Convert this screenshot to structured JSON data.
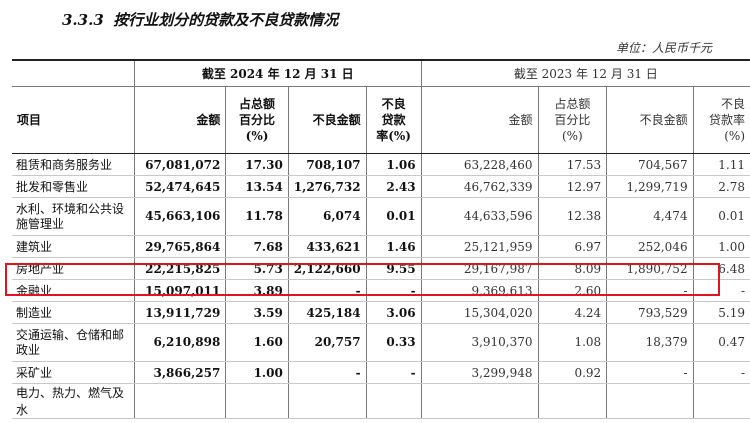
{
  "section": {
    "number": "3.3.3",
    "title": "按行业划分的贷款及不良贷款情况"
  },
  "unit": "单位：人民币千元",
  "header": {
    "item": "项目",
    "period_2024": "截至 2024 年 12 月 31 日",
    "period_2023": "截至 2023 年 12 月 31 日",
    "cols_2024": {
      "amount": "金额",
      "share": [
        "占总额",
        "百分比",
        "(%)"
      ],
      "npl": "不良金额",
      "npl_ratio": [
        "不良",
        "贷款",
        "率(%)"
      ]
    },
    "cols_2023": {
      "amount": "金额",
      "share": [
        "占总额",
        "百分比",
        "(%)"
      ],
      "npl": "不良金额",
      "npl_ratio": [
        "不良",
        "贷款率",
        "(%)"
      ]
    }
  },
  "rows": [
    {
      "name": "租赁和商务服务业",
      "a24": "67,081,072",
      "s24": "17.30",
      "n24": "708,107",
      "r24": "1.06",
      "a23": "63,228,460",
      "s23": "17.53",
      "n23": "704,567",
      "r23": "1.11"
    },
    {
      "name": "批发和零售业",
      "a24": "52,474,645",
      "s24": "13.54",
      "n24": "1,276,732",
      "r24": "2.43",
      "a23": "46,762,339",
      "s23": "12.97",
      "n23": "1,299,719",
      "r23": "2.78"
    },
    {
      "name": "水利、环境和公共设施管理业",
      "a24": "45,663,106",
      "s24": "11.78",
      "n24": "6,074",
      "r24": "0.01",
      "a23": "44,633,596",
      "s23": "12.38",
      "n23": "4,474",
      "r23": "0.01"
    },
    {
      "name": "建筑业",
      "a24": "29,765,864",
      "s24": "7.68",
      "n24": "433,621",
      "r24": "1.46",
      "a23": "25,121,959",
      "s23": "6.97",
      "n23": "252,046",
      "r23": "1.00"
    },
    {
      "name": "房地产业",
      "a24": "22,215,825",
      "s24": "5.73",
      "n24": "2,122,660",
      "r24": "9.55",
      "a23": "29,167,987",
      "s23": "8.09",
      "n23": "1,890,752",
      "r23": "6.48"
    },
    {
      "name": "金融业",
      "a24": "15,097,011",
      "s24": "3.89",
      "n24": "-",
      "r24": "-",
      "a23": "9,369,613",
      "s23": "2.60",
      "n23": "-",
      "r23": "-"
    },
    {
      "name": "制造业",
      "a24": "13,911,729",
      "s24": "3.59",
      "n24": "425,184",
      "r24": "3.06",
      "a23": "15,304,020",
      "s23": "4.24",
      "n23": "793,529",
      "r23": "5.19"
    },
    {
      "name": "交通运输、仓储和邮政业",
      "a24": "6,210,898",
      "s24": "1.60",
      "n24": "20,757",
      "r24": "0.33",
      "a23": "3,910,370",
      "s23": "1.08",
      "n23": "18,379",
      "r23": "0.47"
    },
    {
      "name": "采矿业",
      "a24": "3,866,257",
      "s24": "1.00",
      "n24": "-",
      "r24": "-",
      "a23": "3,299,948",
      "s23": "0.92",
      "n23": "-",
      "r23": "-"
    },
    {
      "name": "电力、热力、燃气及水",
      "a24": "",
      "s24": "",
      "n24": "",
      "r24": "",
      "a23": "",
      "s23": "",
      "n23": "",
      "r23": ""
    }
  ],
  "highlight_color": "#e0141e"
}
